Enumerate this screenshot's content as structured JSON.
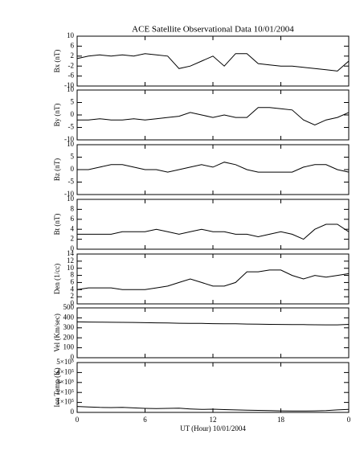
{
  "chart_data": [
    {
      "type": "line",
      "title": "ACE Satellite Observational Data   10/01/2004",
      "y_label": "Bx (nT)",
      "color": "#000000",
      "x": [
        0,
        1,
        2,
        3,
        4,
        5,
        6,
        7,
        8,
        9,
        10,
        11,
        12,
        13,
        14,
        15,
        16,
        17,
        18,
        19,
        20,
        21,
        22,
        23,
        24
      ],
      "values": [
        1,
        2,
        2.5,
        2,
        2.5,
        2,
        3,
        2.5,
        2,
        -3,
        -2,
        0,
        2,
        -2,
        3,
        3,
        -1,
        -1.5,
        -2,
        -2,
        -2.5,
        -3,
        -3.5,
        -4,
        0
      ],
      "xlim": [
        0,
        24
      ],
      "ylim": [
        -10,
        10
      ],
      "yticks": [
        -10,
        -6,
        -2,
        2,
        6,
        10
      ]
    },
    {
      "type": "line",
      "y_label": "By (nT)",
      "color": "#000000",
      "x": [
        0,
        1,
        2,
        3,
        4,
        5,
        6,
        7,
        8,
        9,
        10,
        11,
        12,
        13,
        14,
        15,
        16,
        17,
        18,
        19,
        20,
        21,
        22,
        23,
        24
      ],
      "values": [
        -2,
        -2,
        -1.5,
        -2,
        -2,
        -1.5,
        -2,
        -1.5,
        -1,
        -0.5,
        1,
        0,
        -1,
        0,
        -1,
        -1,
        3,
        3,
        2.5,
        2,
        -2,
        -4,
        -2,
        -1,
        1
      ],
      "xlim": [
        0,
        24
      ],
      "ylim": [
        -10,
        10
      ],
      "yticks": [
        -10,
        -5,
        0,
        5,
        10
      ]
    },
    {
      "type": "line",
      "y_label": "Bz (nT)",
      "color": "#000000",
      "x": [
        0,
        1,
        2,
        3,
        4,
        5,
        6,
        7,
        8,
        9,
        10,
        11,
        12,
        13,
        14,
        15,
        16,
        17,
        18,
        19,
        20,
        21,
        22,
        23,
        24
      ],
      "values": [
        0,
        0,
        1,
        2,
        2,
        1,
        0,
        0,
        -1,
        0,
        1,
        2,
        1,
        3,
        2,
        0,
        -1,
        -1,
        -1,
        -1,
        1,
        2,
        2,
        0,
        -1
      ],
      "xlim": [
        0,
        24
      ],
      "ylim": [
        -10,
        10
      ],
      "yticks": [
        -10,
        -5,
        0,
        5,
        10
      ]
    },
    {
      "type": "line",
      "y_label": "Bt (nT)",
      "color": "#000000",
      "x": [
        0,
        1,
        2,
        3,
        4,
        5,
        6,
        7,
        8,
        9,
        10,
        11,
        12,
        13,
        14,
        15,
        16,
        17,
        18,
        19,
        20,
        21,
        22,
        23,
        24
      ],
      "values": [
        3,
        3,
        3,
        3,
        3.5,
        3.5,
        3.5,
        4,
        3.5,
        3,
        3.5,
        4,
        3.5,
        3.5,
        3,
        3,
        2.5,
        3,
        3.5,
        3,
        2,
        4,
        5,
        5,
        3.5
      ],
      "xlim": [
        0,
        24
      ],
      "ylim": [
        0,
        10
      ],
      "yticks": [
        0,
        2,
        4,
        6,
        8,
        10
      ]
    },
    {
      "type": "line",
      "y_label": "Den (1/cc)",
      "color": "#000000",
      "x": [
        0,
        1,
        2,
        3,
        4,
        5,
        6,
        7,
        8,
        9,
        10,
        11,
        12,
        13,
        14,
        15,
        16,
        17,
        18,
        19,
        20,
        21,
        22,
        23,
        24
      ],
      "values": [
        4,
        4.5,
        4.5,
        4.5,
        4,
        4,
        4,
        4.5,
        5,
        6,
        7,
        6,
        5,
        5,
        6,
        9,
        9,
        9.5,
        9.5,
        8,
        7,
        8,
        7.5,
        8,
        8.5
      ],
      "xlim": [
        0,
        24
      ],
      "ylim": [
        0,
        14
      ],
      "yticks": [
        0,
        2,
        4,
        6,
        8,
        10,
        12,
        14
      ]
    },
    {
      "type": "line",
      "y_label": "Vel (Km/sec)",
      "color": "#000000",
      "x": [
        0,
        1,
        2,
        3,
        4,
        5,
        6,
        7,
        8,
        9,
        10,
        11,
        12,
        13,
        14,
        15,
        16,
        17,
        18,
        19,
        20,
        21,
        22,
        23,
        24
      ],
      "values": [
        360,
        358,
        357,
        356,
        355,
        354,
        352,
        350,
        348,
        346,
        345,
        344,
        342,
        341,
        340,
        338,
        336,
        335,
        334,
        333,
        332,
        331,
        330,
        330,
        335
      ],
      "xlim": [
        0,
        24
      ],
      "ylim": [
        0,
        500
      ],
      "yticks": [
        0,
        100,
        200,
        300,
        400,
        500
      ]
    },
    {
      "type": "line",
      "y_label": "Ion Temp (K)",
      "x_label": "UT (Hour)  10/01/2004",
      "color": "#000000",
      "x": [
        0,
        1,
        2,
        3,
        4,
        5,
        6,
        7,
        8,
        9,
        10,
        11,
        12,
        13,
        14,
        15,
        16,
        17,
        18,
        19,
        20,
        21,
        22,
        23,
        24
      ],
      "values": [
        60000,
        55000,
        50000,
        48000,
        50000,
        45000,
        40000,
        38000,
        40000,
        42000,
        35000,
        30000,
        32000,
        28000,
        25000,
        22000,
        20000,
        18000,
        15000,
        14000,
        14000,
        15000,
        18000,
        25000,
        30000
      ],
      "xlim": [
        0,
        24
      ],
      "ylim": [
        0,
        500000
      ],
      "yticks": [
        0,
        {
          "value": 100000,
          "label": "1×10⁵"
        },
        {
          "value": 200000,
          "label": "2×10⁵"
        },
        {
          "value": 300000,
          "label": "3×10⁵"
        },
        {
          "value": 400000,
          "label": "4×10⁵"
        },
        {
          "value": 500000,
          "label": "5×10⁵"
        }
      ],
      "xticks": [
        0,
        6,
        12,
        18,
        {
          "value": 24,
          "label": "0"
        }
      ]
    }
  ]
}
